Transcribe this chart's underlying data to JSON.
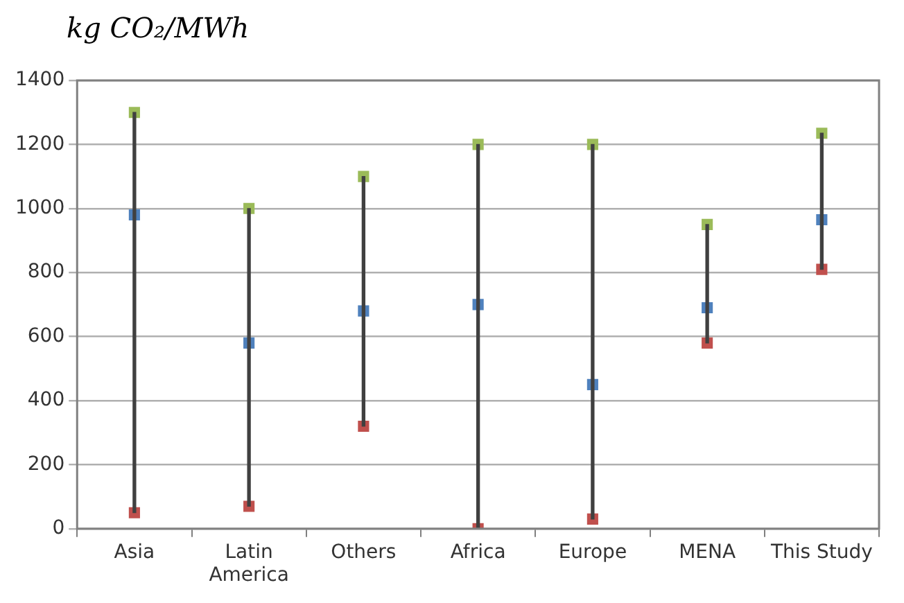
{
  "chart_data": {
    "type": "bar",
    "ylabel": "kg CO₂/MWh",
    "categories": [
      "Asia",
      "Latin\nAmerica",
      "Others",
      "Africa",
      "Europe",
      "MENA",
      "This Study"
    ],
    "series": [
      {
        "type": "bar",
        "color": "#404040",
        "base": [
          50,
          70,
          320,
          0,
          30,
          580,
          810
        ],
        "values": [
          1250,
          930,
          780,
          1200,
          1170,
          370,
          425
        ]
      },
      {
        "type": "scatter",
        "color": "#9bbb59",
        "values": [
          1300,
          1000,
          1100,
          1200,
          1200,
          950,
          1235
        ]
      },
      {
        "type": "scatter",
        "color": "#4f81bd",
        "values": [
          980,
          580,
          680,
          700,
          450,
          690,
          965
        ]
      },
      {
        "type": "scatter",
        "color": "#c0504d",
        "values": [
          50,
          70,
          320,
          0,
          30,
          580,
          810
        ]
      }
    ],
    "ylim": [
      0,
      1400
    ],
    "yticks": [
      0,
      200,
      400,
      600,
      800,
      1000,
      1200,
      1400
    ],
    "grid": "y",
    "legend": false,
    "marker": "square"
  }
}
